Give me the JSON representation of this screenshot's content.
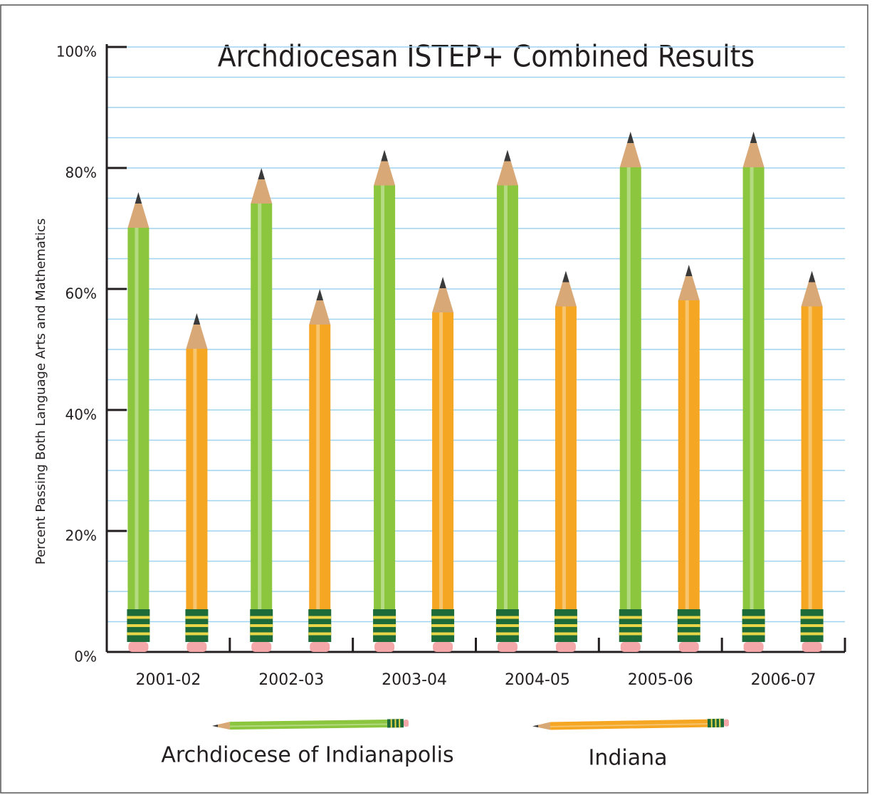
{
  "chart_data": {
    "type": "bar",
    "title": "Archdiocesan ISTEP+ Combined Results",
    "y_label": "Percent Passing Both Language Arts and Mathematics",
    "categories": [
      "2001-02",
      "2002-03",
      "2003-04",
      "2004-05",
      "2005-06",
      "2006-07"
    ],
    "series": [
      {
        "name": "Archdiocese of Indianapolis",
        "color": "#8cc63f",
        "values": [
          76,
          80,
          83,
          83,
          86,
          86
        ]
      },
      {
        "name": "Indiana",
        "color": "#f5a623",
        "values": [
          56,
          60,
          62,
          63,
          64,
          63
        ]
      }
    ],
    "ylim": [
      0,
      100
    ],
    "yticks": [
      {
        "value": 0,
        "label": "0%"
      },
      {
        "value": 20,
        "label": "20%"
      },
      {
        "value": 40,
        "label": "40%"
      },
      {
        "value": 60,
        "label": "60%"
      },
      {
        "value": 80,
        "label": "80%"
      },
      {
        "value": 100,
        "label": "100%"
      }
    ],
    "grid": true
  }
}
